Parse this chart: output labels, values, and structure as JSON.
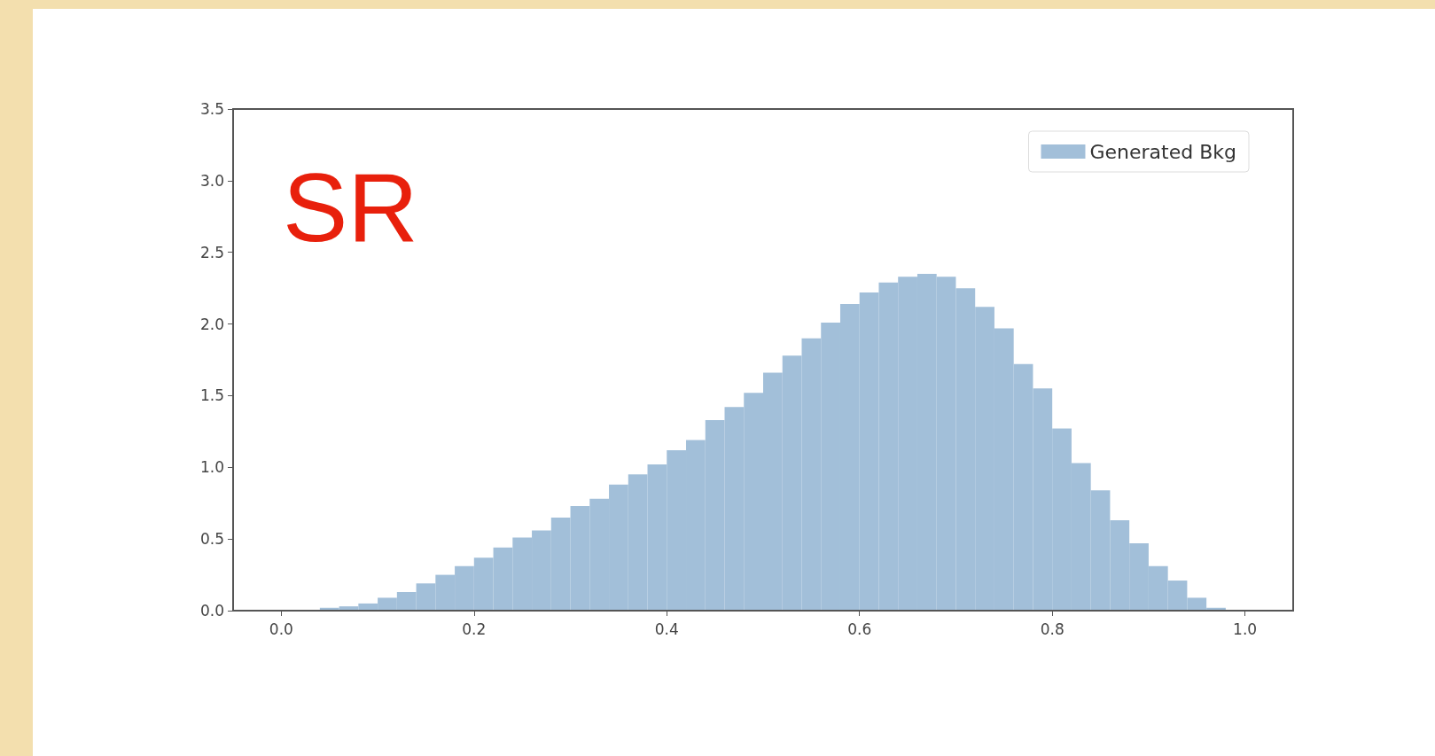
{
  "chart_data": {
    "type": "histogram",
    "bins": [
      0.04,
      0.06,
      0.08,
      0.1,
      0.12,
      0.14,
      0.16,
      0.18,
      0.2,
      0.22,
      0.24,
      0.26,
      0.28,
      0.3,
      0.32,
      0.34,
      0.36,
      0.38,
      0.4,
      0.42,
      0.44,
      0.46,
      0.48,
      0.5,
      0.52,
      0.54,
      0.56,
      0.58,
      0.6,
      0.62,
      0.64,
      0.66,
      0.68,
      0.7,
      0.72,
      0.74,
      0.76,
      0.78,
      0.8,
      0.82,
      0.84,
      0.86,
      0.88,
      0.9,
      0.92,
      0.94,
      0.96,
      0.98
    ],
    "series": [
      {
        "name": "Generated Bkg",
        "color": "#a2bfd9",
        "values": [
          0.02,
          0.03,
          0.05,
          0.09,
          0.13,
          0.19,
          0.25,
          0.31,
          0.37,
          0.44,
          0.51,
          0.56,
          0.65,
          0.73,
          0.78,
          0.88,
          0.95,
          1.02,
          1.12,
          1.19,
          1.33,
          1.42,
          1.52,
          1.66,
          1.78,
          1.9,
          2.01,
          2.14,
          2.22,
          2.29,
          2.33,
          2.35,
          2.33,
          2.25,
          2.12,
          1.97,
          1.72,
          1.55,
          1.27,
          1.03,
          0.84,
          0.63,
          0.47,
          0.31,
          0.21,
          0.09,
          0.02
        ]
      }
    ],
    "xlim": [
      -0.05,
      1.05
    ],
    "xticks": [
      {
        "value": 0,
        "label": "0.0"
      },
      {
        "value": 0.2,
        "label": "0.2"
      },
      {
        "value": 0.4,
        "label": "0.4"
      },
      {
        "value": 0.6,
        "label": "0.6"
      },
      {
        "value": 0.8,
        "label": "0.8"
      },
      {
        "value": 1,
        "label": "1.0"
      }
    ],
    "ylim": [
      0,
      3.5
    ],
    "yticks": [
      {
        "value": 0,
        "label": "0.0"
      },
      {
        "value": 0.5,
        "label": "0.5"
      },
      {
        "value": 1,
        "label": "1.0"
      },
      {
        "value": 1.5,
        "label": "1.5"
      },
      {
        "value": 2,
        "label": "2.0"
      },
      {
        "value": 2.5,
        "label": "2.5"
      },
      {
        "value": 3,
        "label": "3.0"
      },
      {
        "value": 3.5,
        "label": "3.5"
      }
    ],
    "annotations": [
      "SR"
    ],
    "legend": "top right",
    "grid": false
  }
}
